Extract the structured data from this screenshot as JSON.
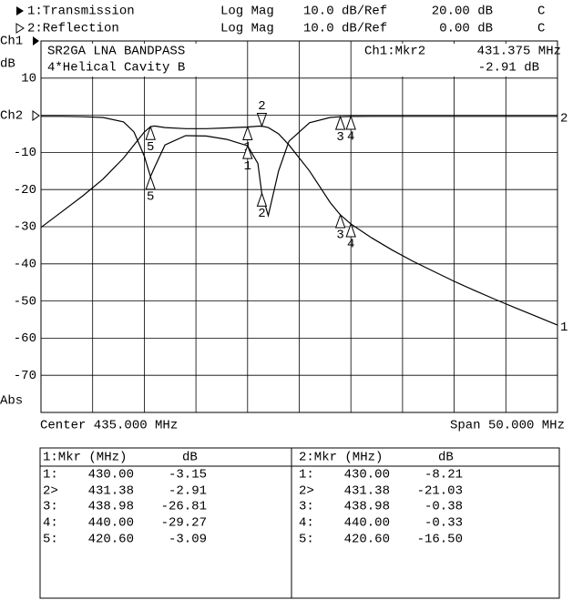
{
  "chart_data": {
    "type": "line",
    "title": "SR2GA LNA BANDPASS",
    "subtitle": "4*Helical Cavity B",
    "y_unit": "dB",
    "active_marker": [
      "Ch1:Mkr2",
      "431.375 MHz",
      "-2.91 dB"
    ],
    "x_label_left": "Center 435.000 MHz",
    "x_label_right": "Span 50.000 MHz",
    "x": [
      410,
      412,
      414,
      416,
      418,
      419,
      420,
      420.6,
      421,
      422,
      424,
      426,
      428,
      430,
      431,
      431.38,
      432,
      433,
      434,
      436,
      438,
      438.98,
      440,
      442,
      444,
      446,
      448,
      450,
      452,
      454,
      456,
      458,
      460
    ],
    "series": [
      {
        "name": "1:Transmission",
        "color": "#000000",
        "end_label": "1",
        "values": [
          -30.2,
          -26,
          -21.8,
          -17.2,
          -11.5,
          -8,
          -4.5,
          -3.09,
          -2.9,
          -3.3,
          -3.6,
          -3.6,
          -3.4,
          -3.15,
          -2.95,
          -2.91,
          -3.3,
          -5,
          -8,
          -15,
          -23.5,
          -26.81,
          -29.27,
          -33,
          -36.3,
          -39.3,
          -42,
          -44.7,
          -47.2,
          -49.6,
          -51.9,
          -54.2,
          -56.5
        ]
      },
      {
        "name": "2:Reflection",
        "color": "#000000",
        "end_label": "2",
        "values": [
          -0.3,
          -0.3,
          -0.4,
          -0.6,
          -1.8,
          -4.5,
          -11,
          -16.5,
          -14,
          -8,
          -5.5,
          -5.6,
          -6.5,
          -8.21,
          -13,
          -21.03,
          -27,
          -15,
          -7,
          -2,
          -0.6,
          -0.38,
          -0.33,
          -0.3,
          -0.3,
          -0.3,
          -0.3,
          -0.3,
          -0.3,
          -0.3,
          -0.3,
          -0.3,
          -0.3
        ]
      }
    ],
    "markers": [
      {
        "label": "1",
        "x_index": 13
      },
      {
        "label": "2",
        "x_index": 15
      },
      {
        "label": "3",
        "x_index": 21
      },
      {
        "label": "4",
        "x_index": 22
      },
      {
        "label": "5",
        "x_index": 7
      }
    ],
    "xlim": [
      410,
      460
    ],
    "xticks": [
      410,
      415,
      420,
      425,
      430,
      435,
      440,
      445,
      450,
      455,
      460
    ],
    "ylim": [
      -80,
      20
    ],
    "yticks": [
      {
        "value": -80,
        "label": "Abs"
      },
      -70,
      -60,
      -50,
      -40,
      -30,
      -20,
      -10,
      {
        "value": 0,
        "label": "Ch2"
      },
      10,
      {
        "value": 20,
        "label": "Ch1"
      }
    ],
    "grid": true
  },
  "header": {
    "lines": [
      [
        "Log Mag",
        "10.0 dB/",
        "Ref",
        "20.00 dB",
        "C"
      ],
      [
        "Log Mag",
        "10.0 dB/",
        "Ref",
        "0.00 dB",
        "C"
      ]
    ]
  },
  "table": {
    "panels": [
      {
        "header": [
          "1:Mkr (MHz)",
          "dB"
        ],
        "rows": [
          [
            "1:",
            "430.00",
            "-3.15"
          ],
          [
            "2>",
            "431.38",
            "-2.91"
          ],
          [
            "3:",
            "438.98",
            "-26.81"
          ],
          [
            "4:",
            "440.00",
            "-29.27"
          ],
          [
            "5:",
            "420.60",
            "-3.09"
          ]
        ]
      },
      {
        "header": [
          "2:Mkr (MHz)",
          "dB"
        ],
        "rows": [
          [
            "1:",
            "430.00",
            "-8.21"
          ],
          [
            "2>",
            "431.38",
            "-21.03"
          ],
          [
            "3:",
            "438.98",
            "-0.38"
          ],
          [
            "4:",
            "440.00",
            "-0.33"
          ],
          [
            "5:",
            "420.60",
            "-16.50"
          ]
        ]
      }
    ]
  }
}
